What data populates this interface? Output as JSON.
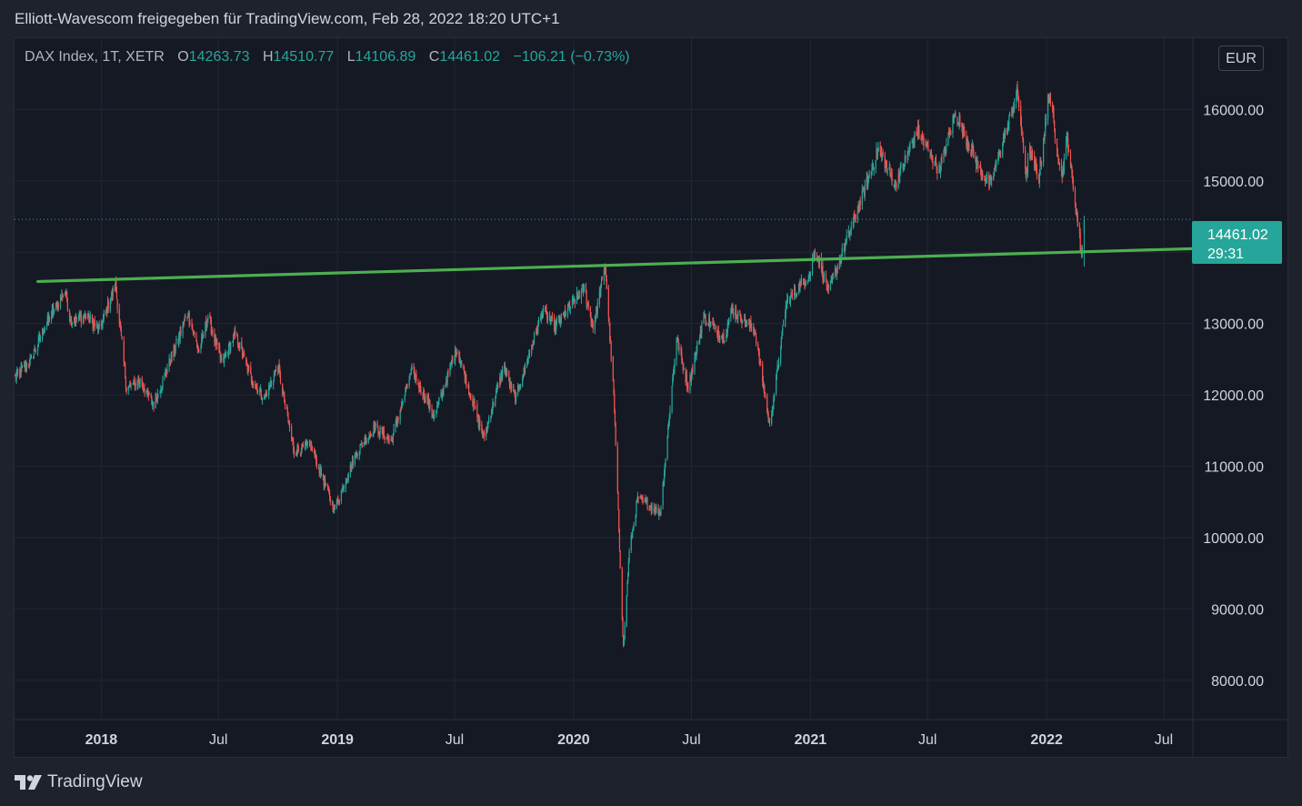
{
  "header": {
    "text": "Elliott-Wavescom freigegeben für TradingView.com, Feb 28, 2022 18:20 UTC+1"
  },
  "legend": {
    "symbol": "DAX Index, 1T, XETR",
    "open_label": "O",
    "open": "14263.73",
    "high_label": "H",
    "high": "14510.77",
    "low_label": "L",
    "low": "14106.89",
    "close_label": "C",
    "close": "14461.02",
    "change": "−106.21 (−0.73%)"
  },
  "currency": "EUR",
  "price_tag": {
    "price": "14461.02",
    "countdown": "29:31"
  },
  "brand": {
    "name": "TradingView"
  },
  "colors": {
    "background": "#151924",
    "up": "#26a69a",
    "down": "#ef5350",
    "trendline": "#4caf50",
    "grid": "#232732"
  },
  "chart_data": {
    "type": "candlestick",
    "y_ticks": [
      "16000.00",
      "15000.00",
      "14000.00",
      "13000.00",
      "12000.00",
      "11000.00",
      "10000.00",
      "9000.00",
      "8000.00"
    ],
    "y_tick_values": [
      16000,
      15000,
      14000,
      13000,
      12000,
      11000,
      10000,
      9000,
      8000
    ],
    "x_ticks": [
      {
        "label": "2018",
        "date": "2018-01-01",
        "bold": true
      },
      {
        "label": "Jul",
        "date": "2018-07-01",
        "bold": false
      },
      {
        "label": "2019",
        "date": "2019-01-01",
        "bold": true
      },
      {
        "label": "Jul",
        "date": "2019-07-01",
        "bold": false
      },
      {
        "label": "2020",
        "date": "2020-01-01",
        "bold": true
      },
      {
        "label": "Jul",
        "date": "2020-07-01",
        "bold": false
      },
      {
        "label": "2021",
        "date": "2021-01-01",
        "bold": true
      },
      {
        "label": "Jul",
        "date": "2021-07-01",
        "bold": false
      },
      {
        "label": "2022",
        "date": "2022-01-01",
        "bold": true
      },
      {
        "label": "Jul",
        "date": "2022-07-01",
        "bold": false
      }
    ],
    "x_range": [
      "2017-08-20",
      "2022-08-15"
    ],
    "y_range": [
      7450,
      17000
    ],
    "last_price": 14461.02,
    "trendline": [
      {
        "date": "2017-09-25",
        "value": 13590
      },
      {
        "date": "2022-08-15",
        "value": 14050
      }
    ],
    "path": [
      [
        "2017-08-21",
        12250
      ],
      [
        "2017-09-15",
        12500
      ],
      [
        "2017-10-05",
        12950
      ],
      [
        "2017-11-06",
        13450
      ],
      [
        "2017-11-15",
        13050
      ],
      [
        "2017-12-10",
        13100
      ],
      [
        "2017-12-29",
        12900
      ],
      [
        "2018-01-23",
        13550
      ],
      [
        "2018-02-09",
        12100
      ],
      [
        "2018-03-02",
        12200
      ],
      [
        "2018-03-23",
        11850
      ],
      [
        "2018-04-20",
        12550
      ],
      [
        "2018-05-15",
        13150
      ],
      [
        "2018-06-01",
        12600
      ],
      [
        "2018-06-15",
        13100
      ],
      [
        "2018-07-06",
        12450
      ],
      [
        "2018-07-27",
        12850
      ],
      [
        "2018-08-20",
        12250
      ],
      [
        "2018-09-10",
        11950
      ],
      [
        "2018-10-01",
        12400
      ],
      [
        "2018-10-26",
        11200
      ],
      [
        "2018-11-20",
        11300
      ],
      [
        "2018-12-27",
        10400
      ],
      [
        "2019-01-31",
        11200
      ],
      [
        "2019-02-28",
        11550
      ],
      [
        "2019-03-25",
        11350
      ],
      [
        "2019-04-26",
        12350
      ],
      [
        "2019-05-31",
        11700
      ],
      [
        "2019-07-04",
        12650
      ],
      [
        "2019-08-15",
        11400
      ],
      [
        "2019-09-15",
        12400
      ],
      [
        "2019-10-03",
        11950
      ],
      [
        "2019-11-15",
        13200
      ],
      [
        "2019-12-03",
        12950
      ],
      [
        "2020-01-17",
        13500
      ],
      [
        "2020-01-31",
        12950
      ],
      [
        "2020-02-19",
        13790
      ],
      [
        "2020-03-03",
        12000
      ],
      [
        "2020-03-18",
        8450
      ],
      [
        "2020-03-27",
        9800
      ],
      [
        "2020-04-09",
        10550
      ],
      [
        "2020-05-14",
        10350
      ],
      [
        "2020-06-08",
        12800
      ],
      [
        "2020-06-26",
        12100
      ],
      [
        "2020-07-20",
        13100
      ],
      [
        "2020-08-20",
        12800
      ],
      [
        "2020-09-02",
        13200
      ],
      [
        "2020-10-07",
        12900
      ],
      [
        "2020-10-30",
        11560
      ],
      [
        "2020-11-25",
        13300
      ],
      [
        "2020-12-31",
        13700
      ],
      [
        "2021-01-08",
        14050
      ],
      [
        "2021-01-29",
        13450
      ],
      [
        "2021-03-15",
        14600
      ],
      [
        "2021-04-16",
        15450
      ],
      [
        "2021-05-12",
        14950
      ],
      [
        "2021-06-15",
        15700
      ],
      [
        "2021-07-19",
        15150
      ],
      [
        "2021-08-13",
        15950
      ],
      [
        "2021-09-20",
        15150
      ],
      [
        "2021-10-06",
        14950
      ],
      [
        "2021-11-17",
        16250
      ],
      [
        "2021-11-30",
        15100
      ],
      [
        "2021-12-06",
        15400
      ],
      [
        "2021-12-20",
        15050
      ],
      [
        "2022-01-05",
        16250
      ],
      [
        "2022-01-24",
        15050
      ],
      [
        "2022-02-02",
        15600
      ],
      [
        "2022-02-24",
        13950
      ],
      [
        "2022-02-28",
        14461
      ]
    ]
  }
}
